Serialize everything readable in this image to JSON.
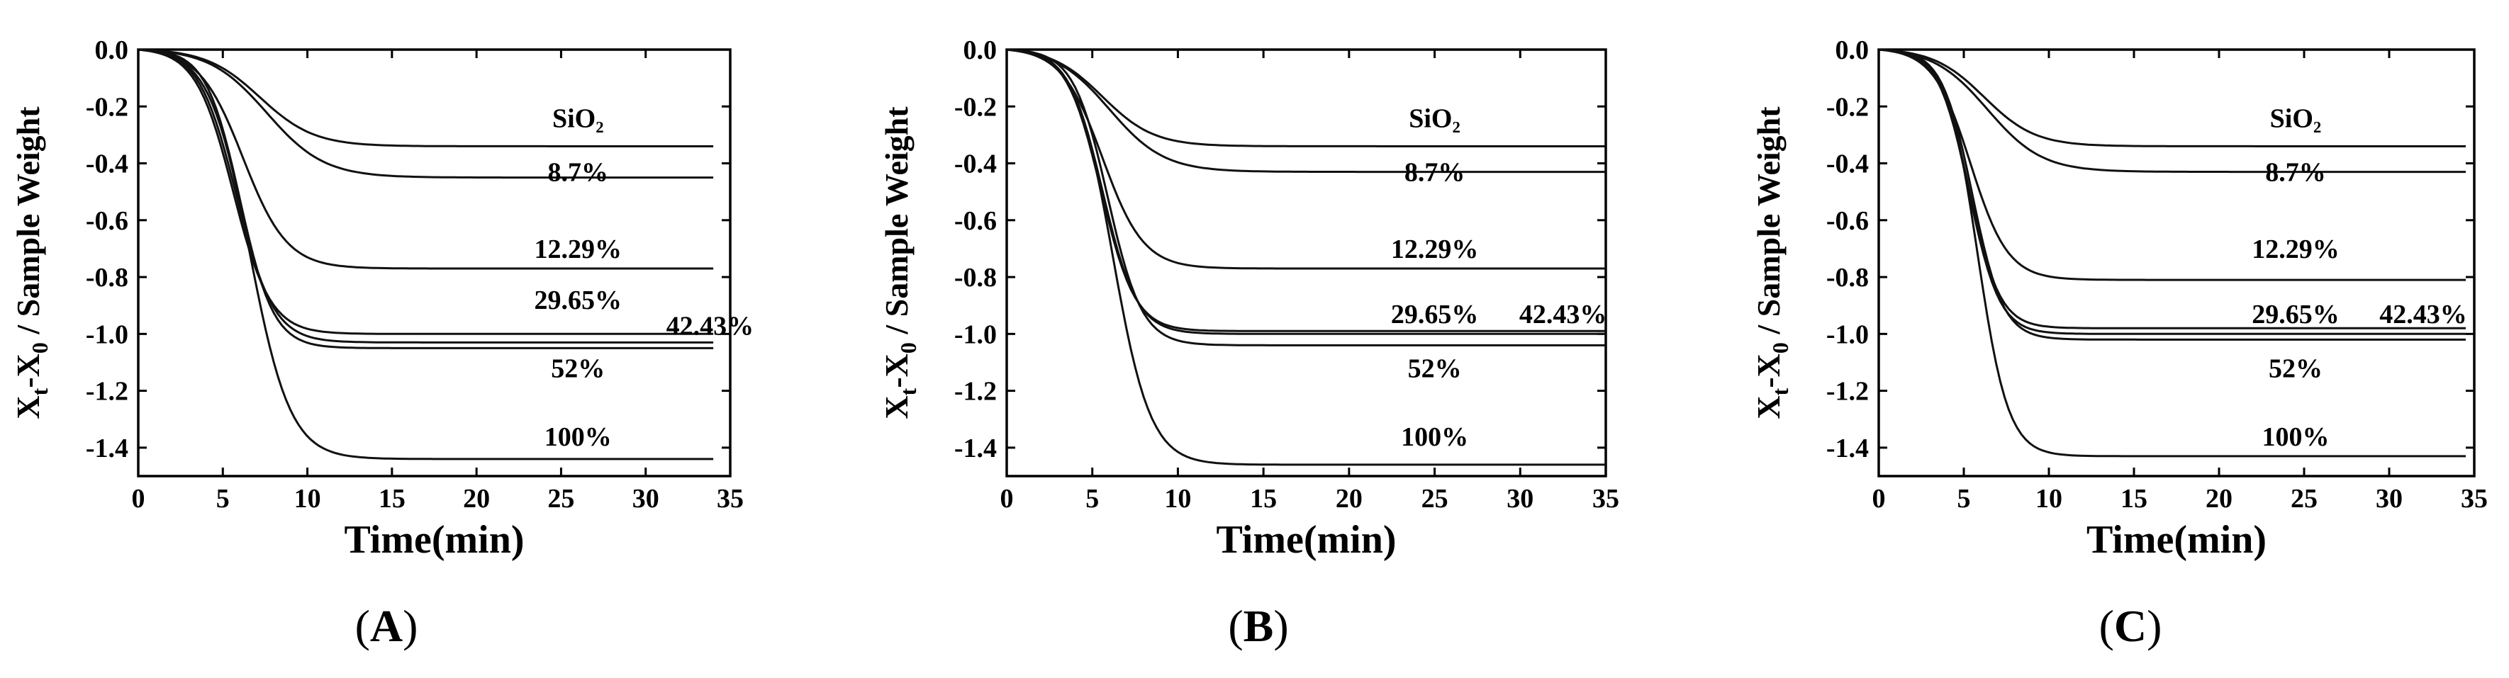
{
  "chart_data": [
    {
      "type": "line",
      "panel": "A",
      "caption": {
        "open": "(",
        "letter": "A",
        "close": ")"
      },
      "xlabel": "Time(min)",
      "ylabel": "Xt-X0 / Sample Weight",
      "ylabel_parts": {
        "x": "X",
        "t": "t",
        "mid": "-X",
        "zero": "0",
        "rest": " / Sample Weight"
      },
      "xlim": [
        0,
        35
      ],
      "ylim": [
        -1.5,
        0.0
      ],
      "xticks": [
        0,
        5,
        10,
        15,
        20,
        25,
        30,
        35
      ],
      "yticks": [
        0.0,
        -0.2,
        -0.4,
        -0.6,
        -0.8,
        -1.0,
        -1.2,
        -1.4
      ],
      "ytick_labels": [
        "0.0",
        "-0.2",
        "-0.4",
        "-0.6",
        "-0.8",
        "-1.0",
        "-1.2",
        "-1.4"
      ],
      "x_end": 34,
      "series": [
        {
          "name": "SiO2",
          "label": "SiO₂",
          "final": -0.34,
          "t_mid": 7.2,
          "width": 1.6,
          "label_pos": [
            26.0,
            -0.24
          ]
        },
        {
          "name": "8.7%",
          "label": "8.7%",
          "final": -0.45,
          "t_mid": 7.6,
          "width": 1.7,
          "label_pos": [
            26.0,
            -0.43
          ]
        },
        {
          "name": "12.29%",
          "label": "12.29%",
          "final": -0.77,
          "t_mid": 6.2,
          "width": 1.3,
          "label_pos": [
            26.0,
            -0.7
          ]
        },
        {
          "name": "29.65%",
          "label": "29.65%",
          "final": -1.03,
          "t_mid": 5.8,
          "width": 1.1,
          "label_pos": [
            26.0,
            -0.88
          ]
        },
        {
          "name": "42.43%",
          "label": "42.43%",
          "final": -1.0,
          "t_mid": 5.6,
          "width": 1.1,
          "label_pos": [
            33.8,
            -0.97
          ]
        },
        {
          "name": "52%",
          "label": "52%",
          "final": -1.05,
          "t_mid": 6.0,
          "width": 1.0,
          "label_pos": [
            26.0,
            -1.12
          ]
        },
        {
          "name": "100%",
          "label": "100%",
          "final": -1.44,
          "t_mid": 6.6,
          "width": 1.2,
          "label_pos": [
            26.0,
            -1.36
          ]
        }
      ]
    },
    {
      "type": "line",
      "panel": "B",
      "caption": {
        "open": "(",
        "letter": "B",
        "close": ")"
      },
      "xlabel": "Time(min)",
      "ylabel": "Xt-X0 / Sample Weight",
      "ylabel_parts": {
        "x": "X",
        "t": "t",
        "mid": "-X",
        "zero": "0",
        "rest": " / Sample Weight"
      },
      "xlim": [
        0,
        35
      ],
      "ylim": [
        -1.5,
        0.0
      ],
      "xticks": [
        0,
        5,
        10,
        15,
        20,
        25,
        30,
        35
      ],
      "yticks": [
        0.0,
        -0.2,
        -0.4,
        -0.6,
        -0.8,
        -1.0,
        -1.2,
        -1.4
      ],
      "ytick_labels": [
        "0.0",
        "-0.2",
        "-0.4",
        "-0.6",
        "-0.8",
        "-1.0",
        "-1.2",
        "-1.4"
      ],
      "x_end": 35,
      "series": [
        {
          "name": "SiO2",
          "label": "SiO₂",
          "final": -0.34,
          "t_mid": 5.6,
          "width": 1.5,
          "label_pos": [
            25.0,
            -0.24
          ]
        },
        {
          "name": "8.7%",
          "label": "8.7%",
          "final": -0.43,
          "t_mid": 6.0,
          "width": 1.6,
          "label_pos": [
            25.0,
            -0.43
          ]
        },
        {
          "name": "12.29%",
          "label": "12.29%",
          "final": -0.77,
          "t_mid": 5.6,
          "width": 1.2,
          "label_pos": [
            25.0,
            -0.7
          ]
        },
        {
          "name": "29.65%",
          "label": "29.65%",
          "final": -0.99,
          "t_mid": 5.5,
          "width": 1.0,
          "label_pos": [
            25.0,
            -0.93
          ]
        },
        {
          "name": "42.43%",
          "label": "42.43%",
          "final": -1.0,
          "t_mid": 5.6,
          "width": 1.0,
          "label_pos": [
            32.5,
            -0.93
          ]
        },
        {
          "name": "52%",
          "label": "52%",
          "final": -1.04,
          "t_mid": 5.9,
          "width": 1.0,
          "label_pos": [
            25.0,
            -1.12
          ]
        },
        {
          "name": "100%",
          "label": "100%",
          "final": -1.46,
          "t_mid": 6.2,
          "width": 1.1,
          "label_pos": [
            25.0,
            -1.36
          ]
        }
      ]
    },
    {
      "type": "line",
      "panel": "C",
      "caption": {
        "open": "(",
        "letter": "C",
        "close": ")"
      },
      "xlabel": "Time(min)",
      "ylabel": "Xt-X0 / Sample Weight",
      "ylabel_parts": {
        "x": "X",
        "t": "t",
        "mid": "-X",
        "zero": "0",
        "rest": " / Sample Weight"
      },
      "xlim": [
        0,
        35
      ],
      "ylim": [
        -1.5,
        0.0
      ],
      "xticks": [
        0,
        5,
        10,
        15,
        20,
        25,
        30,
        35
      ],
      "yticks": [
        0.0,
        -0.2,
        -0.4,
        -0.6,
        -0.8,
        -1.0,
        -1.2,
        -1.4
      ],
      "ytick_labels": [
        "0.0",
        "-0.2",
        "-0.4",
        "-0.6",
        "-0.8",
        "-1.0",
        "-1.2",
        "-1.4"
      ],
      "x_end": 34.5,
      "series": [
        {
          "name": "SiO2",
          "label": "SiO₂",
          "final": -0.34,
          "t_mid": 6.2,
          "width": 1.5,
          "label_pos": [
            24.5,
            -0.24
          ]
        },
        {
          "name": "8.7%",
          "label": "8.7%",
          "final": -0.43,
          "t_mid": 6.4,
          "width": 1.6,
          "label_pos": [
            24.5,
            -0.43
          ]
        },
        {
          "name": "12.29%",
          "label": "12.29%",
          "final": -0.81,
          "t_mid": 5.4,
          "width": 1.1,
          "label_pos": [
            24.5,
            -0.7
          ]
        },
        {
          "name": "29.65%",
          "label": "29.65%",
          "final": -0.98,
          "t_mid": 5.3,
          "width": 0.9,
          "label_pos": [
            24.5,
            -0.93
          ]
        },
        {
          "name": "42.43%",
          "label": "42.43%",
          "final": -1.0,
          "t_mid": 5.3,
          "width": 0.9,
          "label_pos": [
            32.0,
            -0.93
          ]
        },
        {
          "name": "52%",
          "label": "52%",
          "final": -1.02,
          "t_mid": 5.5,
          "width": 0.9,
          "label_pos": [
            24.5,
            -1.12
          ]
        },
        {
          "name": "100%",
          "label": "100%",
          "final": -1.43,
          "t_mid": 5.8,
          "width": 0.9,
          "label_pos": [
            24.5,
            -1.36
          ]
        }
      ]
    }
  ]
}
